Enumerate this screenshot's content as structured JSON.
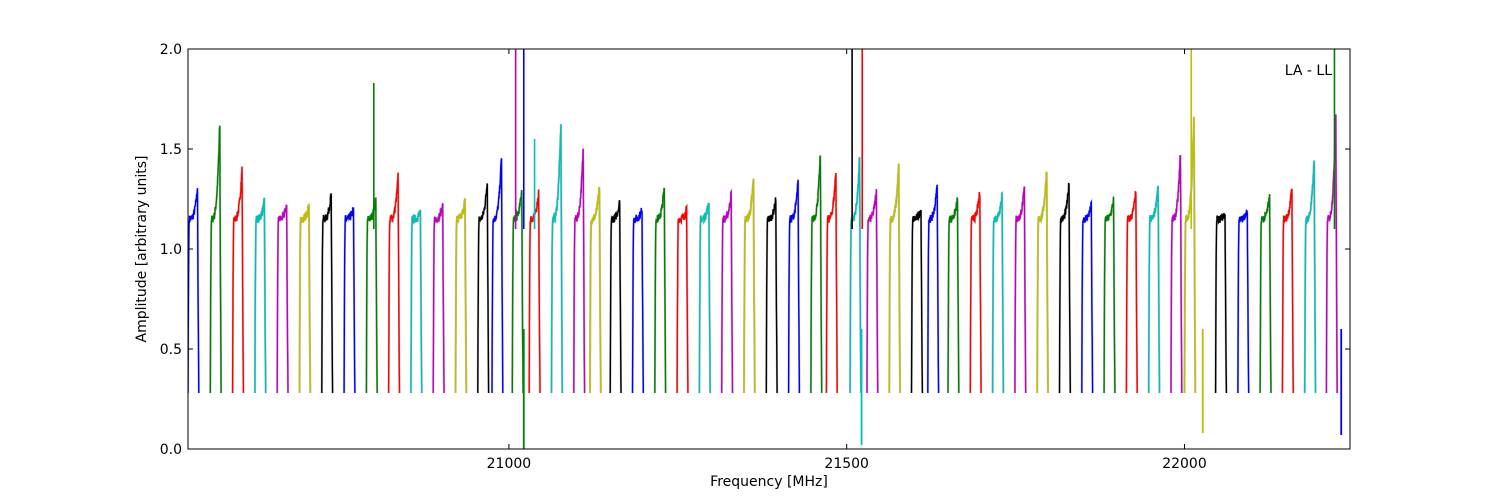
{
  "chart_data": {
    "type": "line",
    "title": "",
    "xlabel": "Frequency [MHz]",
    "ylabel": "Amplitude [arbitrary units]",
    "xlim": [
      20525,
      22245
    ],
    "ylim": [
      0,
      2.0
    ],
    "x_ticks": [
      21000,
      21500,
      22000
    ],
    "y_ticks": [
      0.0,
      0.5,
      1.0,
      1.5,
      2.0
    ],
    "x_tick_labels": [
      "21000",
      "21500",
      "22000"
    ],
    "y_tick_labels": [
      "0.0",
      "0.5",
      "1.0",
      "1.5",
      "2.0"
    ],
    "annotation": "LA - LL",
    "grid": false,
    "legend": "none",
    "colors": [
      "#0000ff",
      "#008000",
      "#ff0000",
      "#00bfbf",
      "#bf00bf",
      "#bfbf00",
      "#000000"
    ],
    "shadow_color": "#c0c0c0",
    "channel_width_mhz": 16,
    "channels": [
      {
        "start": 20525,
        "peak": 1.31
      },
      {
        "start": 20558,
        "peak": 1.63
      },
      {
        "start": 20591,
        "peak": 1.41
      },
      {
        "start": 20624,
        "peak": 1.24
      },
      {
        "start": 20657,
        "peak": 1.22
      },
      {
        "start": 20690,
        "peak": 1.22
      },
      {
        "start": 20723,
        "peak": 1.28
      },
      {
        "start": 20756,
        "peak": 1.2
      },
      {
        "start": 20789,
        "peak": 1.25
      },
      {
        "start": 20822,
        "peak": 1.37
      },
      {
        "start": 20855,
        "peak": 1.18
      },
      {
        "start": 20888,
        "peak": 1.22
      },
      {
        "start": 20921,
        "peak": 1.24
      },
      {
        "start": 20954,
        "peak": 1.35
      },
      {
        "start": 20975,
        "peak": 1.47
      },
      {
        "start": 21005,
        "peak": 1.3
      },
      {
        "start": 21030,
        "peak": 1.29
      },
      {
        "start": 21063,
        "peak": 1.64
      },
      {
        "start": 21096,
        "peak": 1.51
      },
      {
        "start": 21120,
        "peak": 1.31
      },
      {
        "start": 21150,
        "peak": 1.24
      },
      {
        "start": 21183,
        "peak": 1.2
      },
      {
        "start": 21216,
        "peak": 1.31
      },
      {
        "start": 21249,
        "peak": 1.2
      },
      {
        "start": 21282,
        "peak": 1.24
      },
      {
        "start": 21315,
        "peak": 1.28
      },
      {
        "start": 21348,
        "peak": 1.35
      },
      {
        "start": 21381,
        "peak": 1.25
      },
      {
        "start": 21414,
        "peak": 1.34
      },
      {
        "start": 21447,
        "peak": 1.48
      },
      {
        "start": 21470,
        "peak": 1.4
      },
      {
        "start": 21505,
        "peak": 1.45
      },
      {
        "start": 21530,
        "peak": 1.3
      },
      {
        "start": 21563,
        "peak": 1.42
      },
      {
        "start": 21596,
        "peak": 1.2
      },
      {
        "start": 21620,
        "peak": 1.33
      },
      {
        "start": 21650,
        "peak": 1.25
      },
      {
        "start": 21683,
        "peak": 1.29
      },
      {
        "start": 21716,
        "peak": 1.28
      },
      {
        "start": 21749,
        "peak": 1.31
      },
      {
        "start": 21782,
        "peak": 1.4
      },
      {
        "start": 21815,
        "peak": 1.33
      },
      {
        "start": 21848,
        "peak": 1.22
      },
      {
        "start": 21881,
        "peak": 1.25
      },
      {
        "start": 21914,
        "peak": 1.29
      },
      {
        "start": 21947,
        "peak": 1.33
      },
      {
        "start": 21980,
        "peak": 1.49
      },
      {
        "start": 22000,
        "peak": 1.66
      },
      {
        "start": 22046,
        "peak": 1.18
      },
      {
        "start": 22079,
        "peak": 1.18
      },
      {
        "start": 22112,
        "peak": 1.27
      },
      {
        "start": 22145,
        "peak": 1.31
      },
      {
        "start": 22178,
        "peak": 1.45
      },
      {
        "start": 22210,
        "peak": 1.68
      }
    ],
    "spikes": [
      {
        "x": 20800,
        "top": 1.83
      },
      {
        "x": 21010,
        "top": 2.0
      },
      {
        "x": 21022,
        "top": 2.0
      },
      {
        "x": 21038,
        "top": 1.55
      },
      {
        "x": 21508,
        "top": 2.0
      },
      {
        "x": 21523,
        "top": 2.0
      },
      {
        "x": 22010,
        "top": 2.0
      },
      {
        "x": 22222,
        "top": 2.0
      }
    ],
    "dips": [
      {
        "x": 21022,
        "bottom": 0.0
      },
      {
        "x": 21522,
        "bottom": 0.02
      },
      {
        "x": 22027,
        "bottom": 0.08
      },
      {
        "x": 22232,
        "bottom": 0.07
      }
    ]
  }
}
